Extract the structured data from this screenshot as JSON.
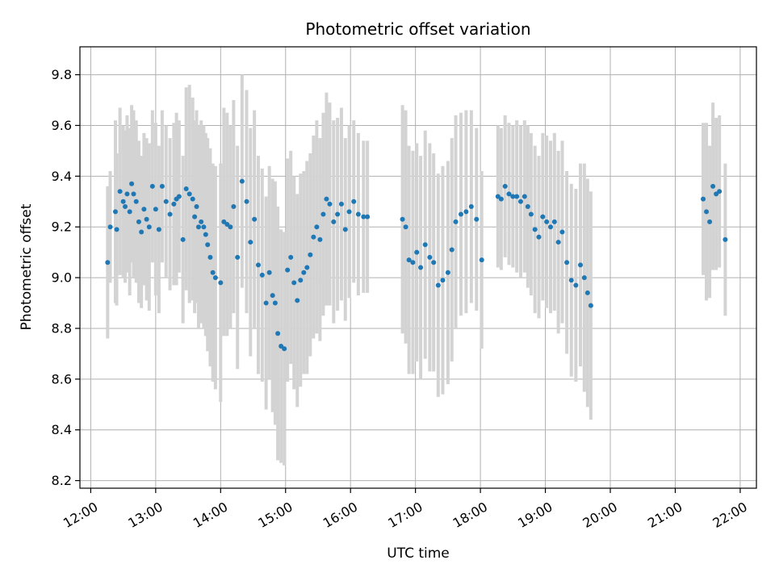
{
  "chart_data": {
    "type": "scatter",
    "title": "Photometric offset variation",
    "xlabel": "UTC time",
    "ylabel": "Photometric offset",
    "x_ticks": [
      "12:00",
      "13:00",
      "14:00",
      "15:00",
      "16:00",
      "17:00",
      "18:00",
      "19:00",
      "20:00",
      "21:00",
      "22:00"
    ],
    "x_tick_hours": [
      12,
      13,
      14,
      15,
      16,
      17,
      18,
      19,
      20,
      21,
      22
    ],
    "y_ticks": [
      "8.2",
      "8.4",
      "8.6",
      "8.8",
      "9.0",
      "9.2",
      "9.4",
      "9.6",
      "9.8"
    ],
    "y_tick_values": [
      8.2,
      8.4,
      8.6,
      8.8,
      9.0,
      9.2,
      9.4,
      9.6,
      9.8
    ],
    "xlim": [
      "11:50",
      "22:15"
    ],
    "ylim": [
      8.17,
      9.91
    ],
    "grid": true,
    "colors": {
      "point": "#1f77b4",
      "errorbar": "#d3d3d3",
      "grid": "#b0b0b0",
      "axis": "#000000"
    },
    "series": [
      {
        "x_hours": [
          12.26,
          12.3,
          12.38,
          12.4,
          12.45,
          12.5,
          12.53,
          12.56,
          12.6,
          12.63,
          12.66,
          12.7,
          12.74,
          12.78,
          12.82,
          12.86,
          12.9,
          12.95,
          13.0,
          13.05,
          13.1,
          13.16,
          13.22,
          13.28,
          13.32,
          13.36,
          13.42,
          13.47,
          13.52,
          13.57,
          13.6,
          13.63,
          13.66,
          13.7,
          13.74,
          13.77,
          13.8,
          13.84,
          13.88,
          13.92,
          14.0,
          14.05,
          14.1,
          14.15,
          14.2,
          14.26,
          14.33,
          14.4,
          14.46,
          14.52,
          14.58,
          14.64,
          14.7,
          14.75,
          14.8,
          14.84,
          14.88,
          14.93,
          14.98,
          15.03,
          15.08,
          15.13,
          15.18,
          15.23,
          15.28,
          15.33,
          15.38,
          15.43,
          15.48,
          15.53,
          15.58,
          15.63,
          15.68,
          15.74,
          15.8,
          15.86,
          15.92,
          15.98,
          16.05,
          16.12,
          16.2,
          16.26,
          16.8,
          16.85,
          16.9,
          16.96,
          17.02,
          17.08,
          17.15,
          17.22,
          17.28,
          17.35,
          17.42,
          17.5,
          17.56,
          17.62,
          17.7,
          17.78,
          17.86,
          17.94,
          18.02,
          18.27,
          18.32,
          18.38,
          18.44,
          18.5,
          18.56,
          18.62,
          18.68,
          18.73,
          18.78,
          18.84,
          18.9,
          18.96,
          19.02,
          19.08,
          19.14,
          19.2,
          19.26,
          19.33,
          19.4,
          19.47,
          19.54,
          19.6,
          19.65,
          19.7,
          21.43,
          21.48,
          21.53,
          21.58,
          21.63,
          21.68,
          21.77
        ],
        "y": [
          9.06,
          9.2,
          9.26,
          9.19,
          9.34,
          9.3,
          9.28,
          9.33,
          9.26,
          9.37,
          9.33,
          9.3,
          9.22,
          9.18,
          9.27,
          9.23,
          9.2,
          9.36,
          9.27,
          9.19,
          9.36,
          9.3,
          9.25,
          9.29,
          9.31,
          9.32,
          9.15,
          9.35,
          9.33,
          9.31,
          9.24,
          9.28,
          9.2,
          9.22,
          9.2,
          9.17,
          9.13,
          9.08,
          9.02,
          9.0,
          8.98,
          9.22,
          9.21,
          9.2,
          9.28,
          9.08,
          9.38,
          9.3,
          9.14,
          9.23,
          9.05,
          9.01,
          8.9,
          9.02,
          8.93,
          8.9,
          8.78,
          8.73,
          8.72,
          9.03,
          9.08,
          8.98,
          8.91,
          8.99,
          9.02,
          9.04,
          9.09,
          9.16,
          9.2,
          9.15,
          9.25,
          9.31,
          9.29,
          9.22,
          9.25,
          9.29,
          9.19,
          9.26,
          9.3,
          9.25,
          9.24,
          9.24,
          9.23,
          9.2,
          9.07,
          9.06,
          9.1,
          9.04,
          9.13,
          9.08,
          9.06,
          8.97,
          8.99,
          9.02,
          9.11,
          9.22,
          9.25,
          9.26,
          9.28,
          9.23,
          9.07,
          9.32,
          9.31,
          9.36,
          9.33,
          9.32,
          9.32,
          9.3,
          9.32,
          9.28,
          9.25,
          9.19,
          9.16,
          9.24,
          9.22,
          9.2,
          9.22,
          9.14,
          9.18,
          9.06,
          8.99,
          8.97,
          9.05,
          9.0,
          8.94,
          8.89,
          9.31,
          9.26,
          9.22,
          9.36,
          9.33,
          9.34,
          9.15
        ],
        "yerr": [
          0.3,
          0.22,
          0.36,
          0.3,
          0.33,
          0.3,
          0.3,
          0.31,
          0.33,
          0.31,
          0.33,
          0.32,
          0.32,
          0.3,
          0.3,
          0.32,
          0.33,
          0.3,
          0.34,
          0.33,
          0.3,
          0.3,
          0.3,
          0.32,
          0.34,
          0.3,
          0.33,
          0.4,
          0.43,
          0.4,
          0.38,
          0.38,
          0.4,
          0.4,
          0.4,
          0.4,
          0.42,
          0.43,
          0.43,
          0.44,
          0.47,
          0.45,
          0.44,
          0.4,
          0.42,
          0.44,
          0.42,
          0.44,
          0.45,
          0.43,
          0.43,
          0.42,
          0.42,
          0.42,
          0.46,
          0.48,
          0.5,
          0.46,
          0.46,
          0.44,
          0.42,
          0.42,
          0.42,
          0.42,
          0.4,
          0.42,
          0.4,
          0.4,
          0.42,
          0.4,
          0.4,
          0.42,
          0.4,
          0.4,
          0.38,
          0.38,
          0.36,
          0.34,
          0.32,
          0.32,
          0.3,
          0.3,
          0.45,
          0.46,
          0.45,
          0.44,
          0.43,
          0.44,
          0.45,
          0.45,
          0.43,
          0.44,
          0.45,
          0.44,
          0.44,
          0.42,
          0.4,
          0.4,
          0.38,
          0.36,
          0.35,
          0.28,
          0.28,
          0.28,
          0.28,
          0.28,
          0.3,
          0.3,
          0.3,
          0.32,
          0.32,
          0.33,
          0.32,
          0.33,
          0.34,
          0.34,
          0.35,
          0.36,
          0.36,
          0.36,
          0.38,
          0.38,
          0.4,
          0.45,
          0.45,
          0.45,
          0.3,
          0.35,
          0.3,
          0.33,
          0.3,
          0.3,
          0.3
        ]
      }
    ]
  }
}
